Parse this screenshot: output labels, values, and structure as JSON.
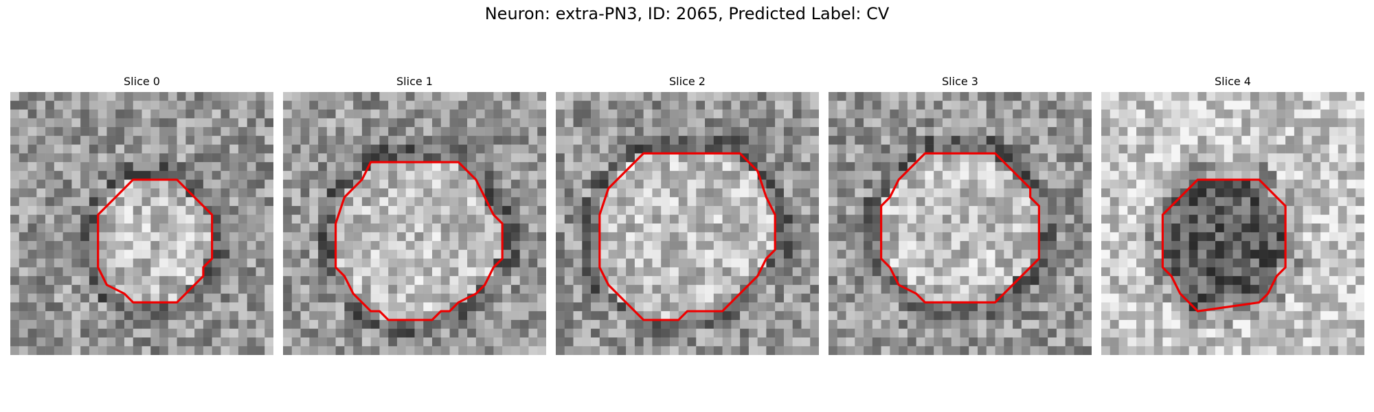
{
  "figure": {
    "title": "Neuron: extra-PN3, ID: 2065, Predicted Label: CV"
  },
  "panels": [
    {
      "title": "Slice 0",
      "seed": 11,
      "contrast": "mid",
      "contour": [
        [
          16,
          10
        ],
        [
          19,
          10
        ],
        [
          21,
          12
        ],
        [
          22,
          13
        ],
        [
          23,
          14
        ],
        [
          23,
          19
        ],
        [
          22,
          20
        ],
        [
          22,
          21
        ],
        [
          20,
          23
        ],
        [
          19,
          24
        ],
        [
          14,
          24
        ],
        [
          13,
          23
        ],
        [
          11,
          22
        ],
        [
          10,
          20
        ],
        [
          10,
          14
        ],
        [
          11,
          13
        ],
        [
          12,
          12
        ],
        [
          14,
          10
        ]
      ]
    },
    {
      "title": "Slice 1",
      "seed": 23,
      "contrast": "mid",
      "contour": [
        [
          10,
          8
        ],
        [
          20,
          8
        ],
        [
          21,
          9
        ],
        [
          22,
          10
        ],
        [
          23,
          12
        ],
        [
          24,
          14
        ],
        [
          25,
          15
        ],
        [
          25,
          19
        ],
        [
          24,
          20
        ],
        [
          23,
          22
        ],
        [
          22,
          23
        ],
        [
          20,
          24
        ],
        [
          19,
          25
        ],
        [
          18,
          25
        ],
        [
          17,
          26
        ],
        [
          12,
          26
        ],
        [
          11,
          25
        ],
        [
          10,
          25
        ],
        [
          9,
          24
        ],
        [
          8,
          23
        ],
        [
          7,
          21
        ],
        [
          6,
          20
        ],
        [
          6,
          15
        ],
        [
          7,
          12
        ],
        [
          8,
          11
        ],
        [
          9,
          10
        ]
      ]
    },
    {
      "title": "Slice 2",
      "seed": 37,
      "contrast": "mid",
      "contour": [
        [
          10,
          7
        ],
        [
          21,
          7
        ],
        [
          22,
          8
        ],
        [
          23,
          9
        ],
        [
          24,
          12
        ],
        [
          25,
          14
        ],
        [
          25,
          18
        ],
        [
          24,
          19
        ],
        [
          23,
          21
        ],
        [
          21,
          23
        ],
        [
          20,
          24
        ],
        [
          19,
          25
        ],
        [
          15,
          25
        ],
        [
          14,
          26
        ],
        [
          10,
          26
        ],
        [
          9,
          25
        ],
        [
          8,
          24
        ],
        [
          6,
          22
        ],
        [
          5,
          20
        ],
        [
          5,
          14
        ],
        [
          6,
          11
        ],
        [
          7,
          10
        ],
        [
          9,
          8
        ]
      ]
    },
    {
      "title": "Slice 3",
      "seed": 51,
      "contrast": "mid",
      "contour": [
        [
          11,
          7
        ],
        [
          19,
          7
        ],
        [
          20,
          8
        ],
        [
          21,
          9
        ],
        [
          22,
          10
        ],
        [
          23,
          11
        ],
        [
          23,
          12
        ],
        [
          24,
          13
        ],
        [
          24,
          19
        ],
        [
          23,
          20
        ],
        [
          22,
          21
        ],
        [
          21,
          22
        ],
        [
          20,
          23
        ],
        [
          19,
          24
        ],
        [
          11,
          24
        ],
        [
          10,
          23
        ],
        [
          8,
          22
        ],
        [
          7,
          20
        ],
        [
          6,
          19
        ],
        [
          6,
          13
        ],
        [
          7,
          12
        ],
        [
          8,
          10
        ],
        [
          9,
          9
        ]
      ]
    },
    {
      "title": "Slice 4",
      "seed": 67,
      "contrast": "dark",
      "contour": [
        [
          11,
          10
        ],
        [
          18,
          10
        ],
        [
          19,
          11
        ],
        [
          20,
          12
        ],
        [
          21,
          13
        ],
        [
          21,
          20
        ],
        [
          20,
          21
        ],
        [
          19,
          23
        ],
        [
          18,
          24
        ],
        [
          11,
          25
        ],
        [
          10,
          24
        ],
        [
          9,
          23
        ],
        [
          8,
          21
        ],
        [
          7,
          20
        ],
        [
          7,
          14
        ],
        [
          8,
          13
        ],
        [
          9,
          12
        ],
        [
          10,
          11
        ]
      ]
    }
  ]
}
